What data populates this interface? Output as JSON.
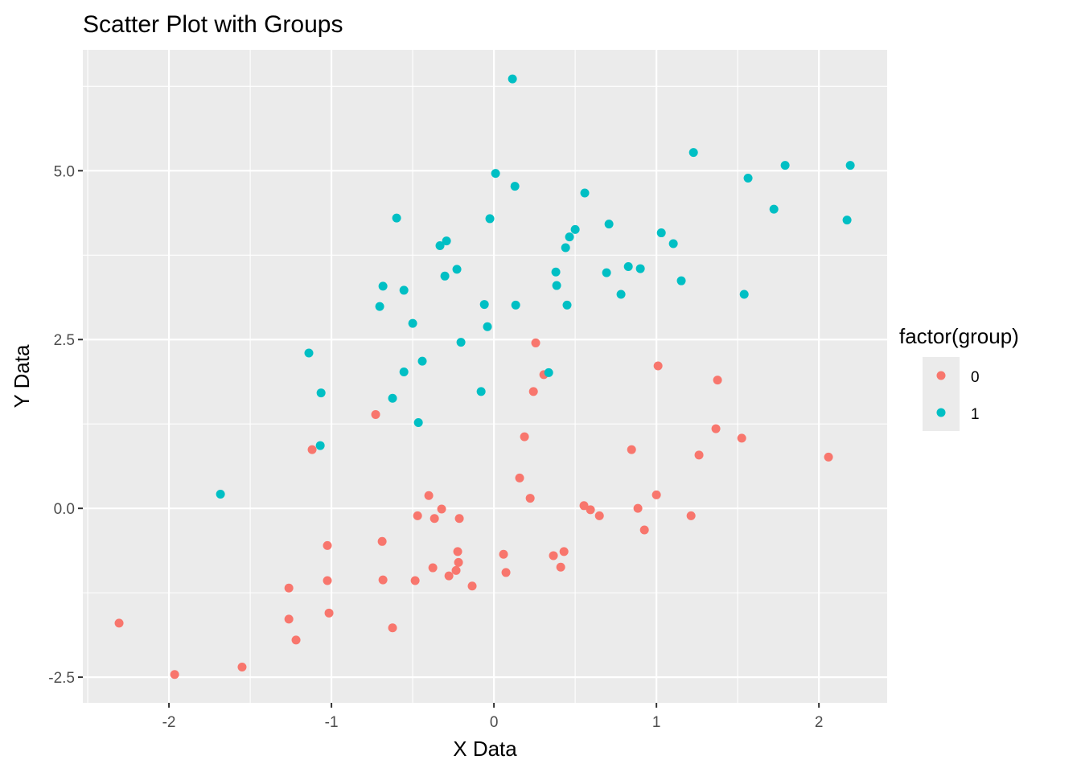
{
  "chart_data": {
    "type": "scatter",
    "title": "Scatter Plot with Groups",
    "xlabel": "X Data",
    "ylabel": "Y Data",
    "xlim": [
      -2.53,
      2.42
    ],
    "ylim": [
      -2.88,
      6.79
    ],
    "xticks": [
      -2,
      -1,
      0,
      1,
      2
    ],
    "xtick_labels": [
      "-2",
      "-1",
      "0",
      "1",
      "2"
    ],
    "yticks": [
      -2.5,
      0,
      2.5,
      5
    ],
    "ytick_labels": [
      "-2.5",
      "0.0",
      "2.5",
      "5.0"
    ],
    "grid": true,
    "legend": {
      "title": "factor(group)",
      "placement": "right"
    },
    "series": [
      {
        "name": "0",
        "color": "#F8766D",
        "points": [
          [
            -2.307,
            -1.7
          ],
          [
            -1.965,
            -2.46
          ],
          [
            -1.55,
            -2.35
          ],
          [
            -1.262,
            -1.18
          ],
          [
            -1.262,
            -1.64
          ],
          [
            -1.218,
            -1.95
          ],
          [
            -1.119,
            0.87
          ],
          [
            -1.025,
            -0.55
          ],
          [
            -1.025,
            -1.07
          ],
          [
            -1.015,
            -1.55
          ],
          [
            -0.728,
            1.39
          ],
          [
            -0.688,
            -0.49
          ],
          [
            -0.683,
            -1.06
          ],
          [
            -0.624,
            -1.77
          ],
          [
            -0.485,
            -1.07
          ],
          [
            -0.47,
            -0.11
          ],
          [
            -0.401,
            0.19
          ],
          [
            -0.376,
            -0.88
          ],
          [
            -0.366,
            -0.15
          ],
          [
            -0.322,
            -0.01
          ],
          [
            -0.277,
            -1.0
          ],
          [
            -0.233,
            -0.92
          ],
          [
            -0.223,
            -0.64
          ],
          [
            -0.218,
            -0.8
          ],
          [
            -0.213,
            -0.15
          ],
          [
            -0.134,
            -1.15
          ],
          [
            0.059,
            -0.68
          ],
          [
            0.074,
            -0.95
          ],
          [
            0.158,
            0.45
          ],
          [
            0.188,
            1.06
          ],
          [
            0.223,
            0.15
          ],
          [
            0.243,
            1.73
          ],
          [
            0.257,
            2.45
          ],
          [
            0.307,
            1.98
          ],
          [
            0.366,
            -0.7
          ],
          [
            0.411,
            -0.87
          ],
          [
            0.431,
            -0.64
          ],
          [
            0.554,
            0.04
          ],
          [
            0.594,
            -0.02
          ],
          [
            0.649,
            -0.11
          ],
          [
            0.847,
            0.87
          ],
          [
            0.886,
            0.0
          ],
          [
            0.926,
            -0.32
          ],
          [
            1.0,
            0.2
          ],
          [
            1.01,
            2.11
          ],
          [
            1.213,
            -0.11
          ],
          [
            1.262,
            0.79
          ],
          [
            1.366,
            1.18
          ],
          [
            1.376,
            1.9
          ],
          [
            1.525,
            1.04
          ],
          [
            2.059,
            0.76
          ]
        ]
      },
      {
        "name": "1",
        "color": "#00BFC4",
        "points": [
          [
            -1.683,
            0.21
          ],
          [
            -1.139,
            2.3
          ],
          [
            -1.069,
            0.93
          ],
          [
            -1.064,
            1.71
          ],
          [
            -0.703,
            2.99
          ],
          [
            -0.683,
            3.29
          ],
          [
            -0.624,
            1.63
          ],
          [
            -0.599,
            4.3
          ],
          [
            -0.554,
            2.02
          ],
          [
            -0.554,
            3.23
          ],
          [
            -0.5,
            2.74
          ],
          [
            -0.465,
            1.27
          ],
          [
            -0.441,
            2.18
          ],
          [
            -0.332,
            3.89
          ],
          [
            -0.302,
            3.44
          ],
          [
            -0.292,
            3.96
          ],
          [
            -0.228,
            3.54
          ],
          [
            -0.203,
            2.46
          ],
          [
            -0.079,
            1.73
          ],
          [
            -0.059,
            3.02
          ],
          [
            -0.04,
            2.69
          ],
          [
            -0.025,
            4.29
          ],
          [
            0.01,
            4.96
          ],
          [
            0.114,
            6.36
          ],
          [
            0.129,
            4.77
          ],
          [
            0.134,
            3.01
          ],
          [
            0.337,
            2.01
          ],
          [
            0.381,
            3.5
          ],
          [
            0.386,
            3.3
          ],
          [
            0.441,
            3.86
          ],
          [
            0.45,
            3.01
          ],
          [
            0.465,
            4.02
          ],
          [
            0.5,
            4.13
          ],
          [
            0.559,
            4.67
          ],
          [
            0.693,
            3.49
          ],
          [
            0.708,
            4.21
          ],
          [
            0.782,
            3.17
          ],
          [
            0.827,
            3.58
          ],
          [
            0.901,
            3.55
          ],
          [
            1.03,
            4.08
          ],
          [
            1.104,
            3.92
          ],
          [
            1.153,
            3.37
          ],
          [
            1.228,
            5.27
          ],
          [
            1.54,
            3.17
          ],
          [
            1.564,
            4.89
          ],
          [
            1.723,
            4.43
          ],
          [
            1.792,
            5.08
          ],
          [
            2.173,
            4.27
          ],
          [
            2.193,
            5.08
          ]
        ]
      }
    ]
  }
}
